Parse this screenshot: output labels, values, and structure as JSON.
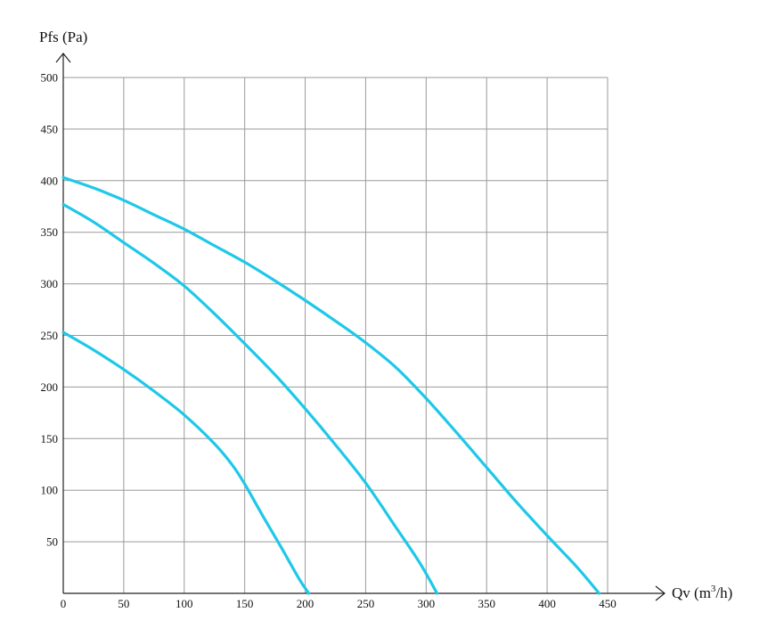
{
  "chart_data": {
    "type": "line",
    "title": "",
    "xlabel": "Qv (m",
    "xlabel_sup": "3",
    "xlabel_tail": "/h)",
    "ylabel": "Pfs (Pa)",
    "xlim": [
      0,
      450
    ],
    "ylim": [
      0,
      500
    ],
    "x_ticks": [
      "0",
      "50",
      "100",
      "150",
      "200",
      "250",
      "300",
      "350",
      "400",
      "450"
    ],
    "y_ticks": [
      "50",
      "100",
      "150",
      "200",
      "250",
      "300",
      "350",
      "400",
      "450",
      "500"
    ],
    "grid": true,
    "line_color": "#1ec8e8",
    "series": [
      {
        "x": [
          0,
          25,
          50,
          75,
          100,
          125,
          140,
          150,
          165,
          180,
          195,
          203
        ],
        "y": [
          253,
          236,
          217,
          196,
          173,
          145,
          124,
          106,
          75,
          45,
          14,
          0
        ]
      },
      {
        "x": [
          0,
          25,
          50,
          75,
          100,
          125,
          150,
          175,
          200,
          225,
          250,
          275,
          295,
          309
        ],
        "y": [
          377,
          360,
          340,
          320,
          298,
          271,
          242,
          212,
          179,
          144,
          107,
          64,
          29,
          0
        ]
      },
      {
        "x": [
          0,
          25,
          50,
          75,
          100,
          125,
          150,
          175,
          200,
          225,
          250,
          275,
          300,
          325,
          350,
          375,
          400,
          425,
          443
        ],
        "y": [
          403,
          393,
          381,
          367,
          353,
          337,
          321,
          303,
          284,
          264,
          243,
          219,
          189,
          156,
          122,
          88,
          56,
          25,
          0
        ]
      }
    ]
  }
}
